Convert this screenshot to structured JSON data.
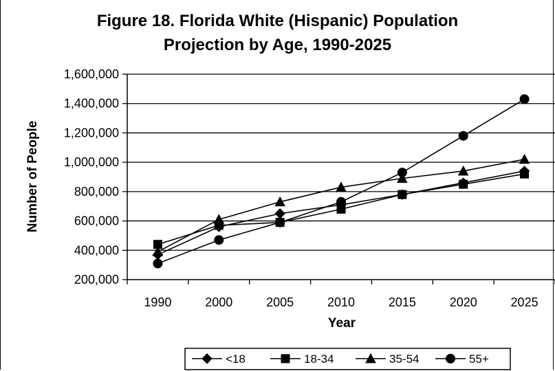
{
  "chart_data": {
    "type": "line",
    "title": "Figure 18.  Florida White (Hispanic) Population",
    "subtitle": "Projection by Age, 1990-2025",
    "xlabel": "Year",
    "ylabel": "Number of People",
    "categories": [
      "1990",
      "2000",
      "2005",
      "2010",
      "2015",
      "2020",
      "2025"
    ],
    "ylim": [
      200000,
      1600000
    ],
    "yticks": [
      "200,000",
      "400,000",
      "600,000",
      "800,000",
      "1,000,000",
      "1,200,000",
      "1,400,000",
      "1,600,000"
    ],
    "ytick_values": [
      200000,
      400000,
      600000,
      800000,
      1000000,
      1200000,
      1400000,
      1600000
    ],
    "grid": true,
    "legend_position": "bottom",
    "series": [
      {
        "name": "<18",
        "marker": "diamond",
        "values": [
          370000,
          560000,
          650000,
          710000,
          780000,
          860000,
          940000
        ]
      },
      {
        "name": "18-34",
        "marker": "square",
        "values": [
          440000,
          570000,
          590000,
          680000,
          780000,
          850000,
          920000
        ]
      },
      {
        "name": "35-54",
        "marker": "triangle",
        "values": [
          390000,
          610000,
          730000,
          830000,
          890000,
          940000,
          1020000
        ]
      },
      {
        "name": "55+",
        "marker": "circle",
        "values": [
          310000,
          470000,
          590000,
          730000,
          930000,
          1180000,
          1430000
        ]
      }
    ]
  }
}
